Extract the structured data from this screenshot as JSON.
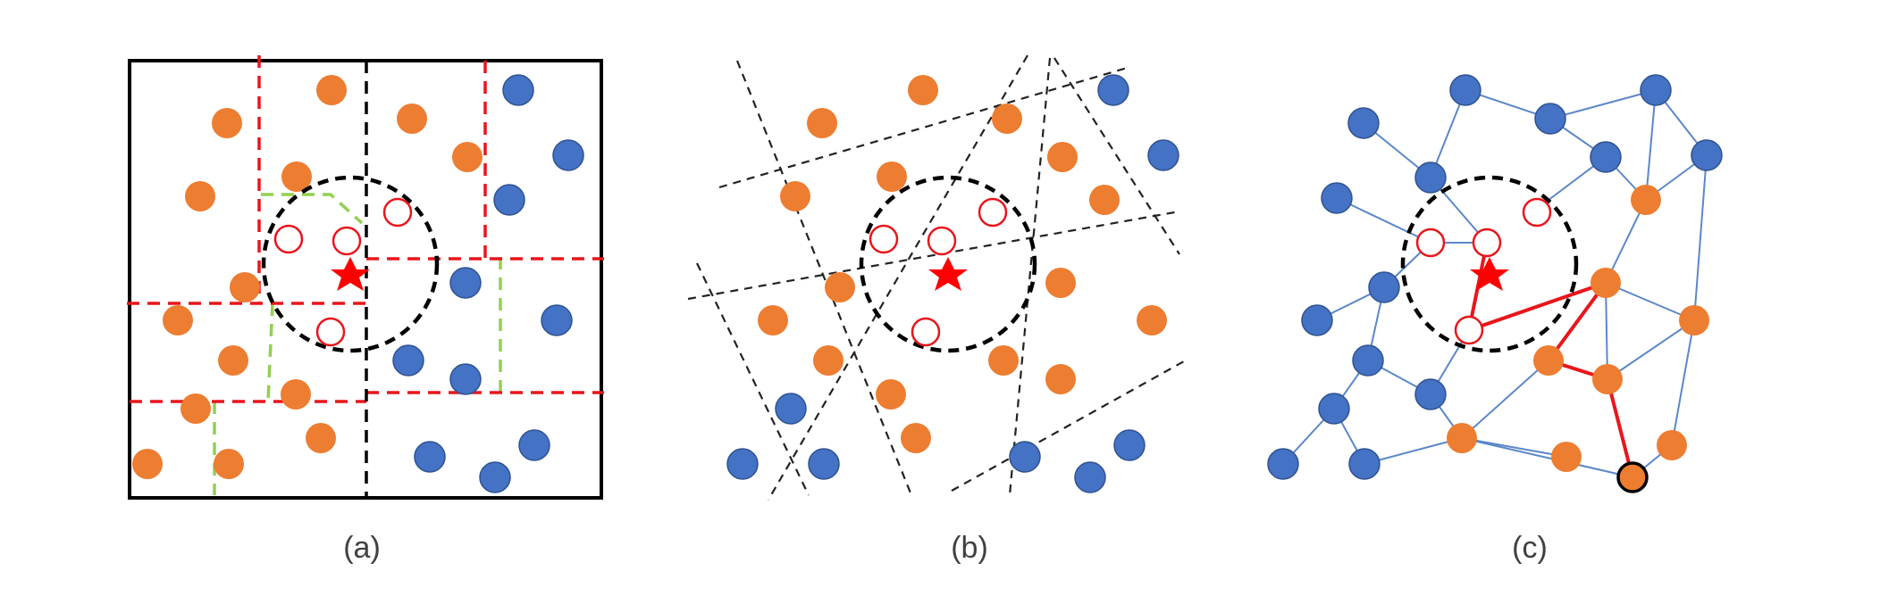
{
  "panels": [
    {
      "id": "a",
      "caption": "(a)"
    },
    {
      "id": "b",
      "caption": "(b)"
    },
    {
      "id": "c",
      "caption": "(c)"
    }
  ],
  "colors": {
    "orange_point": "#ED7D31",
    "blue_point": "#4472C4",
    "query_star": "#FF0000",
    "neighbor_ring": "#E8161B",
    "red_partition": "#E8161B",
    "green_partition": "#92D050",
    "black_line": "#000000",
    "graph_edge": "#5B87C9",
    "search_path": "#E8161B"
  }
}
